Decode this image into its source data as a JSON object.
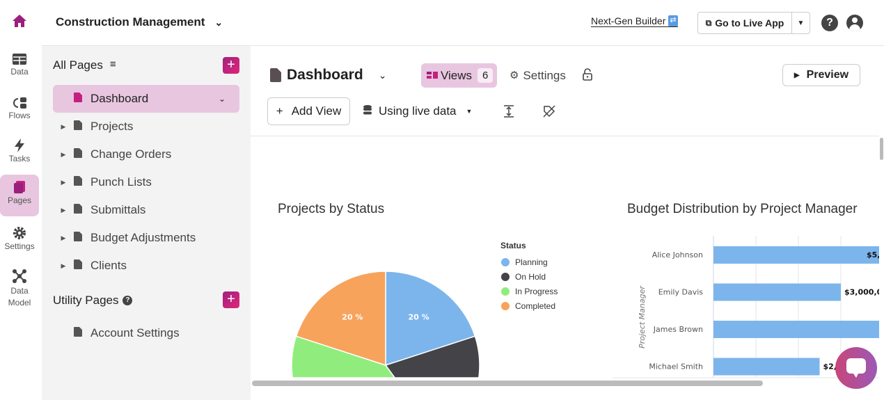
{
  "app": {
    "title": "Construction Management",
    "next_gen": "Next-Gen Builder",
    "go_live": "Go to Live App"
  },
  "rail": [
    {
      "label": "Data"
    },
    {
      "label": "Flows"
    },
    {
      "label": "Tasks"
    },
    {
      "label": "Pages"
    },
    {
      "label": "Settings"
    },
    {
      "label": "Data Model"
    }
  ],
  "sidebar": {
    "all_pages": "All Pages",
    "utility_pages": "Utility Pages",
    "pages": [
      {
        "label": "Dashboard"
      },
      {
        "label": "Projects"
      },
      {
        "label": "Change Orders"
      },
      {
        "label": "Punch Lists"
      },
      {
        "label": "Submittals"
      },
      {
        "label": "Budget Adjustments"
      },
      {
        "label": "Clients"
      }
    ],
    "utility": [
      {
        "label": "Account Settings"
      }
    ]
  },
  "header": {
    "page_title": "Dashboard",
    "views_label": "Views",
    "views_count": "6",
    "settings_label": "Settings",
    "preview_label": "Preview",
    "add_view": "Add View",
    "data_source": "Using live data"
  },
  "colors": {
    "accent": "#c2217f",
    "selected_bg": "#e8c6e0"
  },
  "chart_data": [
    {
      "type": "pie",
      "title": "Projects by Status",
      "legend_title": "Status",
      "legend_position": "right",
      "slices": [
        {
          "name": "Planning",
          "value": 20,
          "color": "#7cb5ec",
          "label": "20 %"
        },
        {
          "name": "On Hold",
          "value": 20,
          "color": "#434348",
          "label": ""
        },
        {
          "name": "In Progress",
          "value": 40,
          "color": "#90ed7d",
          "label": ""
        },
        {
          "name": "Completed",
          "value": 20,
          "color": "#f7a35c",
          "label": "20 %"
        }
      ]
    },
    {
      "type": "bar",
      "orientation": "horizontal",
      "title": "Budget Distribution by Project Manager",
      "ylabel": "Project Manager",
      "grid": true,
      "categories": [
        "Alice Johnson",
        "Emily Davis",
        "James Brown",
        "Michael Smith"
      ],
      "values": [
        5000000,
        3000000,
        4000000,
        2500000
      ],
      "labels": [
        "$5,",
        "$3,000,0",
        "",
        "$2,"
      ],
      "color": "#7cb5ec"
    }
  ]
}
